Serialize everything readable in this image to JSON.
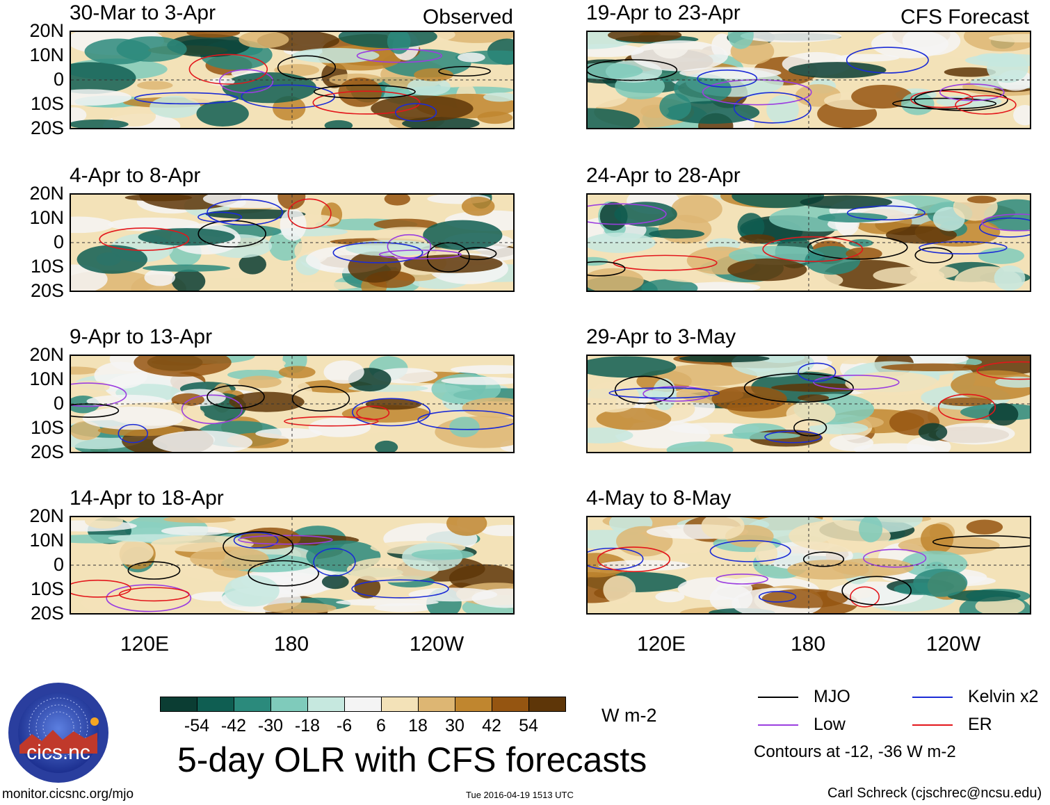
{
  "labels": {
    "observed": "Observed",
    "forecast": "CFS Forecast",
    "units": "W m-2",
    "main_title": "5-day OLR with CFS forecasts",
    "site": "monitor.cicsnc.org/mjo",
    "timestamp": "Tue 2016-04-19 1513 UTC",
    "author": "Carl Schreck (cjschrec@ncsu.edu)",
    "contours_note": "Contours at -12, -36 W m-2",
    "logo_text": "cics.nc",
    "logo_ring": "Cooperative Institute for Climate and Satellites"
  },
  "panels": {
    "left": [
      {
        "title": "30-Mar to 3-Apr"
      },
      {
        "title": "4-Apr to 8-Apr"
      },
      {
        "title": "9-Apr to 13-Apr"
      },
      {
        "title": "14-Apr to 18-Apr"
      }
    ],
    "right": [
      {
        "title": "19-Apr to 23-Apr"
      },
      {
        "title": "24-Apr to 28-Apr"
      },
      {
        "title": "29-Apr to 3-May"
      },
      {
        "title": "4-May to 8-May"
      }
    ]
  },
  "axes": {
    "lat": [
      "20N",
      "10N",
      "0",
      "10S",
      "20S"
    ],
    "lon": [
      "120E",
      "180",
      "120W"
    ]
  },
  "colorbar": {
    "colors": [
      "#0b3d33",
      "#0f5e52",
      "#2b8a7c",
      "#7fcbbb",
      "#c6e8df",
      "#f4f4f4",
      "#f3e2b8",
      "#ddb673",
      "#c0862f",
      "#955511",
      "#5e3608"
    ],
    "ticks": [
      "-54",
      "-42",
      "-30",
      "-18",
      "-6",
      "6",
      "18",
      "30",
      "42",
      "54"
    ]
  },
  "legend": [
    {
      "name": "MJO",
      "color": "#000000"
    },
    {
      "name": "Kelvin x2",
      "color": "#1b2bd6"
    },
    {
      "name": "Low",
      "color": "#9b3ee0"
    },
    {
      "name": "ER",
      "color": "#e3161b"
    }
  ]
}
